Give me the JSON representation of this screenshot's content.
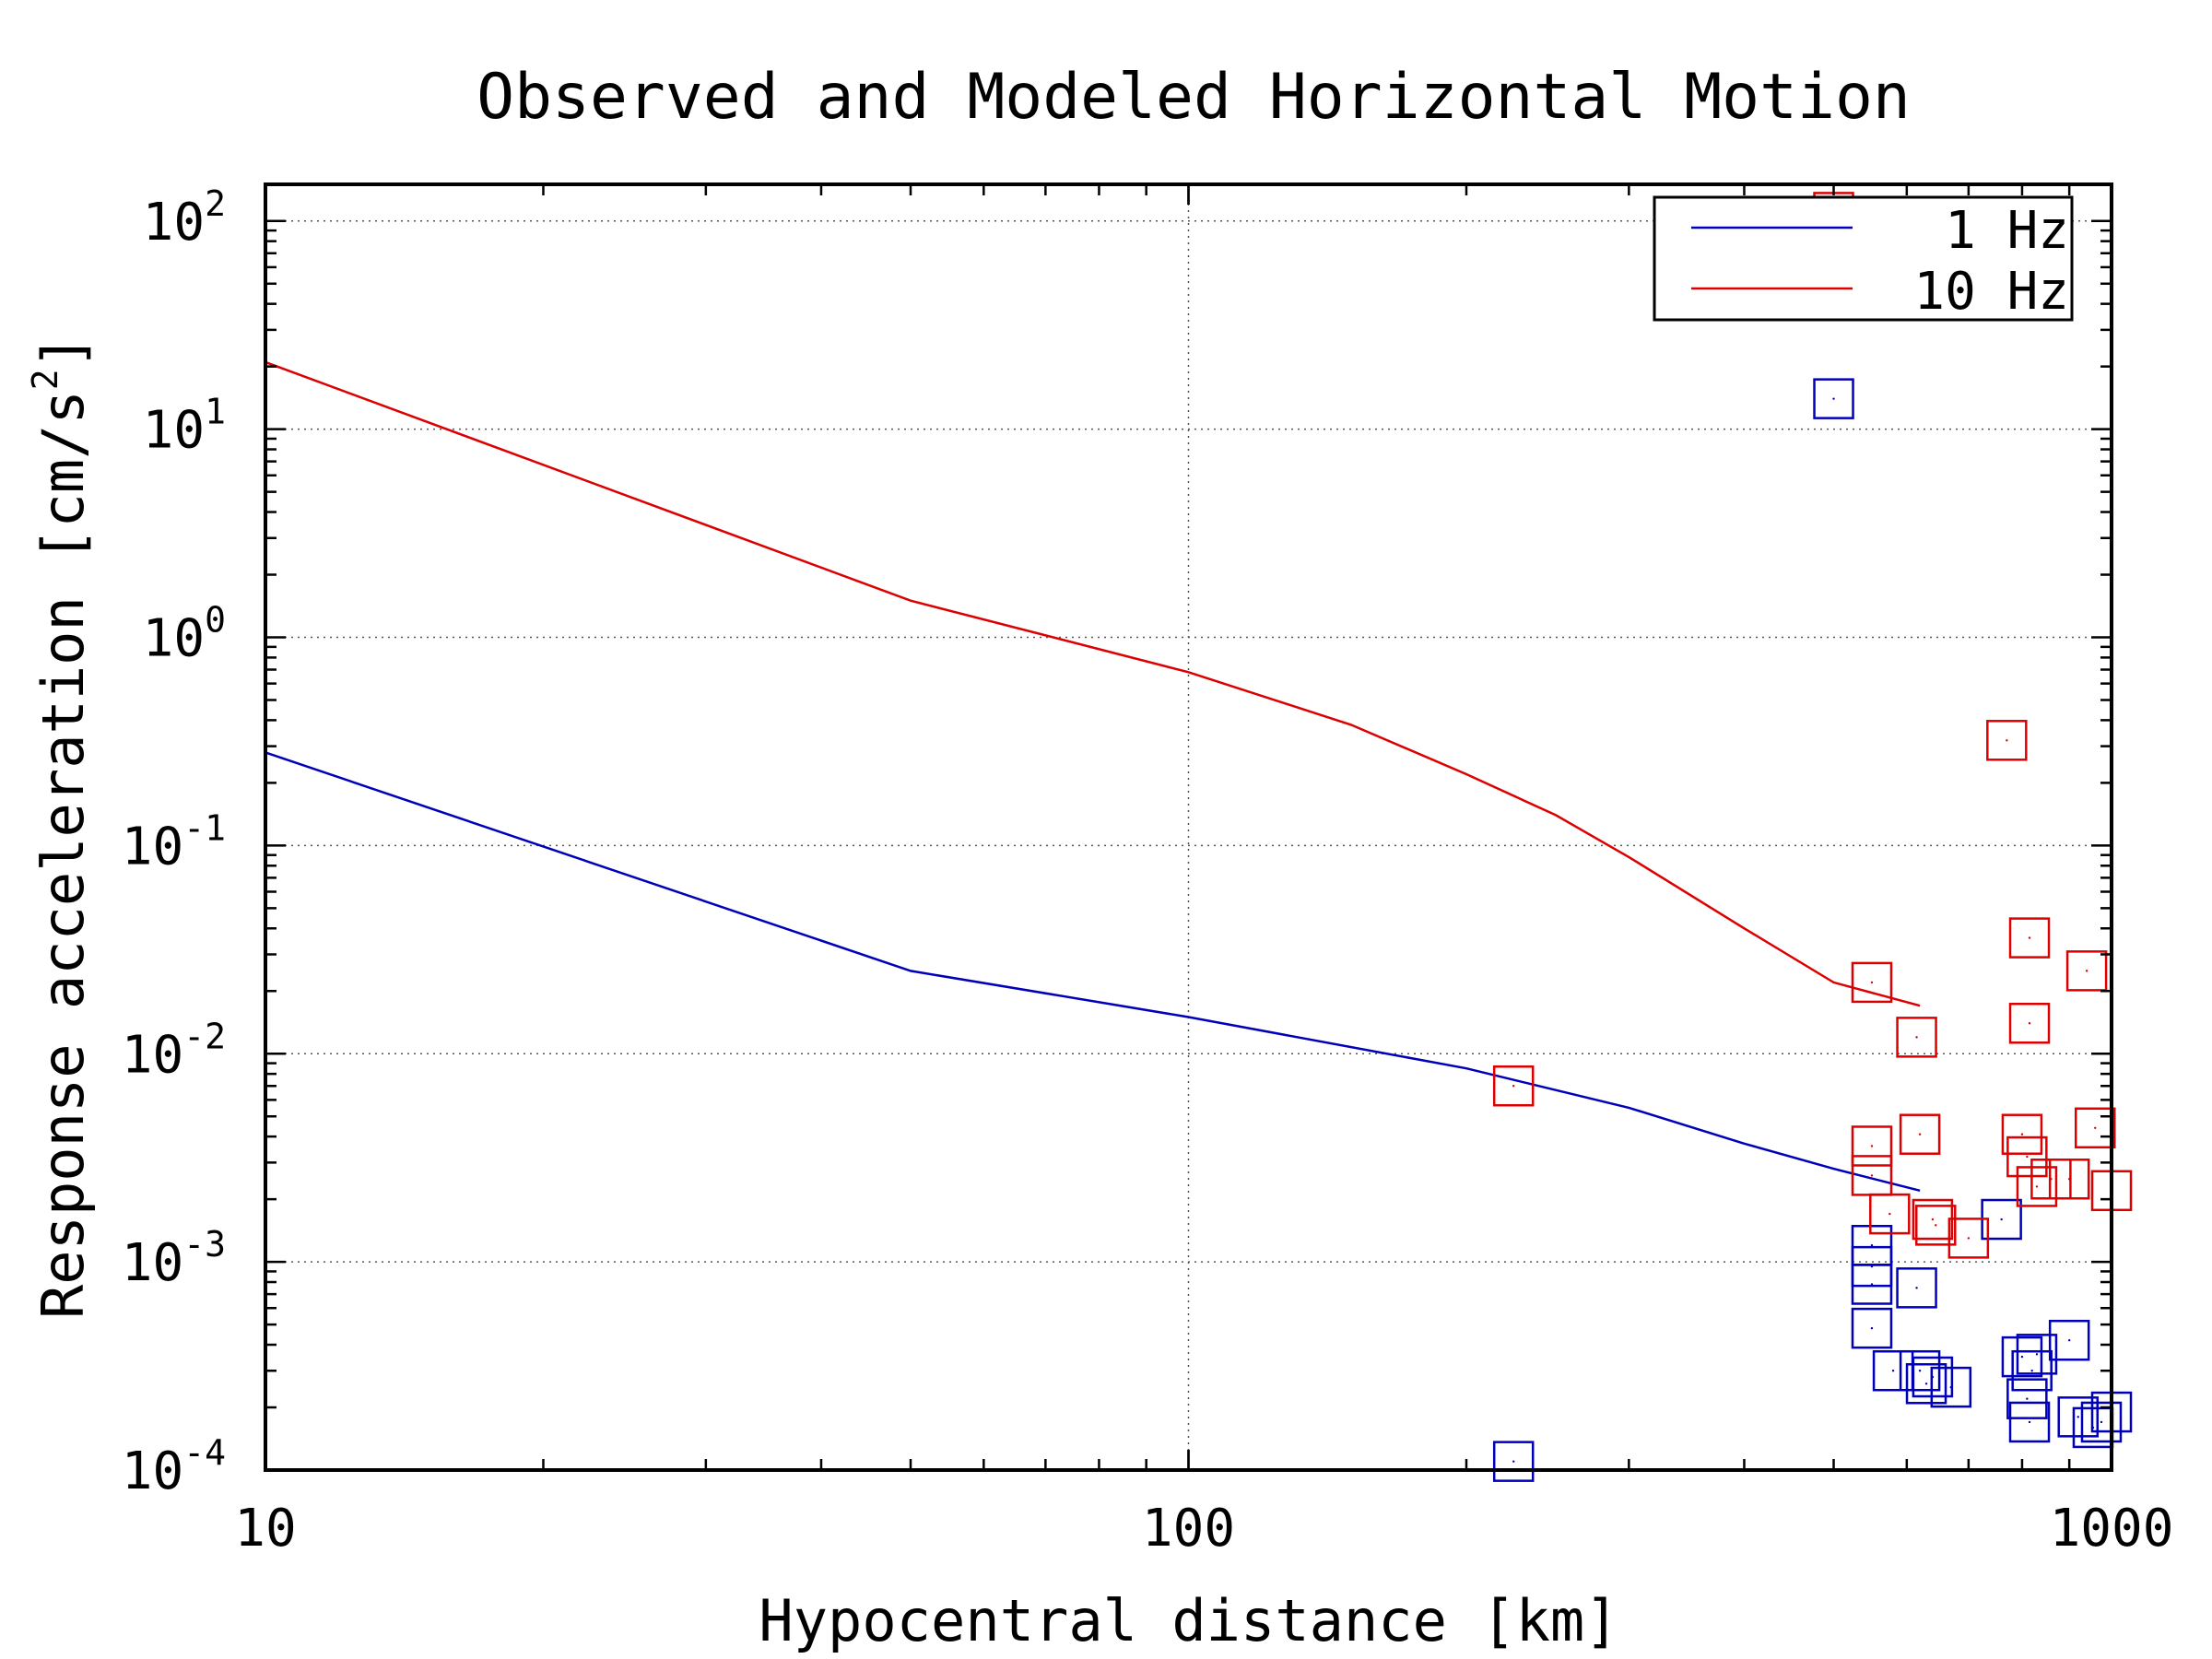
{
  "chart_data": {
    "type": "line",
    "title": "Observed and Modeled Horizontal Motion",
    "xlabel": "Hypocentral distance [km]",
    "ylabel": "Response acceleration [cm/s²]",
    "ylabel_parts": {
      "main": "Response acceleration [cm/s",
      "sup": "2",
      "tail": "]"
    },
    "xscale": "log",
    "yscale": "log",
    "xlim": [
      10,
      1000
    ],
    "ylim": [
      0.0001,
      150
    ],
    "xticks": [
      {
        "value": 10,
        "label": "10"
      },
      {
        "value": 100,
        "label": "100"
      },
      {
        "value": 1000,
        "label": "1000"
      }
    ],
    "yticks": [
      {
        "value": 0.0001,
        "base": "10",
        "exp": "-4"
      },
      {
        "value": 0.001,
        "base": "10",
        "exp": "-3"
      },
      {
        "value": 0.01,
        "base": "10",
        "exp": "-2"
      },
      {
        "value": 0.1,
        "base": "10",
        "exp": "-1"
      },
      {
        "value": 1,
        "base": "10",
        "exp": "0"
      },
      {
        "value": 10,
        "base": "10",
        "exp": "1"
      },
      {
        "value": 100,
        "base": "10",
        "exp": "2"
      }
    ],
    "grid": true,
    "legend_position": "top-right",
    "series": [
      {
        "name": "1 Hz",
        "color": "#0000bb",
        "model": {
          "x": [
            10,
            50,
            100,
            200,
            300,
            400,
            500,
            620
          ],
          "y": [
            0.28,
            0.025,
            0.015,
            0.0085,
            0.0055,
            0.0037,
            0.0028,
            0.0022
          ]
        },
        "observed": {
          "x": [
            225,
            500,
            550,
            550,
            550,
            550,
            580,
            615,
            620,
            630,
            640,
            670,
            760,
            800,
            810,
            815,
            820,
            830,
            900,
            920,
            955,
            975,
            1000
          ],
          "y": [
            0.00011,
            14,
            0.0012,
            0.00095,
            0.00078,
            0.00048,
            0.0003,
            0.00075,
            0.0003,
            0.00026,
            0.00028,
            0.00025,
            0.0016,
            0.00035,
            0.00022,
            0.00017,
            0.0003,
            0.00036,
            0.00042,
            0.00018,
            0.00016,
            0.00017,
            0.00019
          ]
        }
      },
      {
        "name": "10 Hz",
        "color": "#dd0000",
        "model": {
          "x": [
            10,
            50,
            100,
            150,
            200,
            250,
            300,
            400,
            500,
            620
          ],
          "y": [
            21,
            1.5,
            0.68,
            0.38,
            0.22,
            0.14,
            0.088,
            0.04,
            0.022,
            0.017
          ]
        },
        "observed": {
          "x": [
            225,
            500,
            550,
            550,
            550,
            575,
            615,
            620,
            640,
            645,
            700,
            770,
            800,
            810,
            815,
            815,
            830,
            860,
            900,
            940,
            960,
            1000
          ],
          "y": [
            0.007,
            110,
            0.022,
            0.0036,
            0.0026,
            0.0017,
            0.012,
            0.0041,
            0.0016,
            0.0015,
            0.0013,
            0.32,
            0.0041,
            0.0032,
            0.036,
            0.014,
            0.0023,
            0.0025,
            0.0025,
            0.025,
            0.0044,
            0.0022
          ]
        }
      }
    ]
  }
}
